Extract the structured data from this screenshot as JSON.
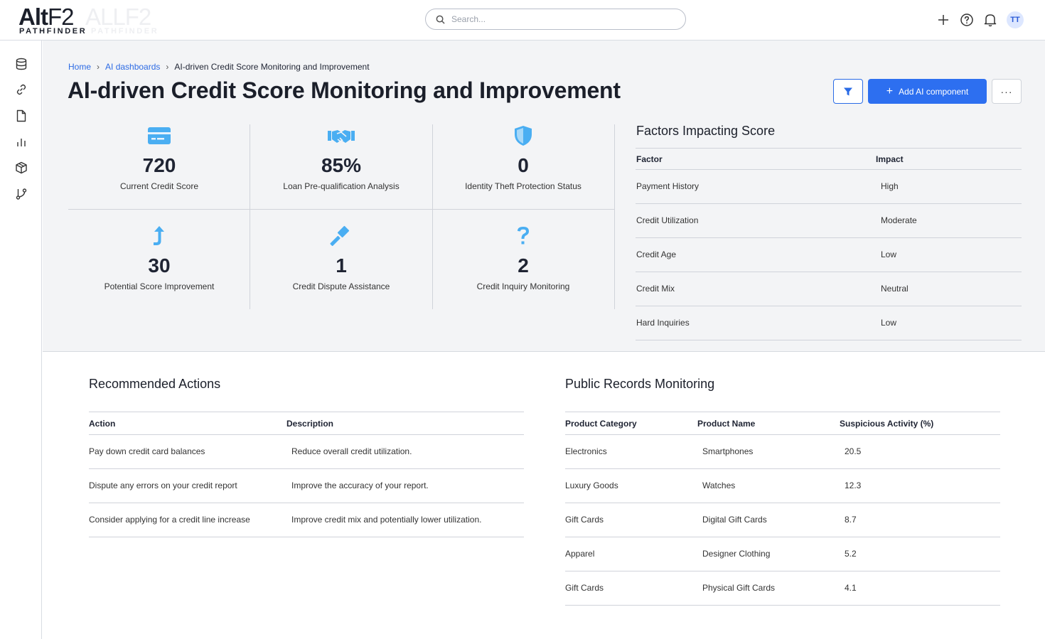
{
  "app": {
    "logo_main": "Alt",
    "logo_thin": "F2",
    "logo_sub": "PATHFINDER"
  },
  "search": {
    "placeholder": "Search..."
  },
  "topbar": {
    "avatar_initials": "TT",
    "icons": [
      "plus-icon",
      "help-icon",
      "bell-icon"
    ]
  },
  "sidebar": {
    "items": [
      "database-icon",
      "link-icon",
      "file-icon",
      "bar-chart-icon",
      "box-icon",
      "git-branch-icon"
    ]
  },
  "breadcrumb": {
    "home": "Home",
    "dashboards": "AI dashboards",
    "current": "AI-driven Credit Score Monitoring and Improvement"
  },
  "page": {
    "title": "AI-driven Credit Score Monitoring and Improvement",
    "add_button": "Add AI component",
    "more_button": "···"
  },
  "kpis": [
    {
      "icon": "credit-card-icon",
      "value": "720",
      "label": "Current Credit Score"
    },
    {
      "icon": "handshake-icon",
      "value": "85%",
      "label": "Loan Pre-qualification Analysis"
    },
    {
      "icon": "shield-icon",
      "value": "0",
      "label": "Identity Theft Protection Status"
    },
    {
      "icon": "arrow-up-icon",
      "value": "30",
      "label": "Potential Score Improvement"
    },
    {
      "icon": "gavel-icon",
      "value": "1",
      "label": "Credit Dispute Assistance"
    },
    {
      "icon": "question-icon",
      "value": "2",
      "label": "Credit Inquiry Monitoring"
    }
  ],
  "accent_colors": {
    "primary": "#2d6ff0",
    "icon": "#4aaef2"
  },
  "factors": {
    "title": "Factors Impacting Score",
    "headers": [
      "Factor",
      "Impact"
    ],
    "rows": [
      [
        "Payment History",
        "High"
      ],
      [
        "Credit Utilization",
        "Moderate"
      ],
      [
        "Credit Age",
        "Low"
      ],
      [
        "Credit Mix",
        "Neutral"
      ],
      [
        "Hard Inquiries",
        "Low"
      ]
    ]
  },
  "recommended": {
    "title": "Recommended Actions",
    "headers": [
      "Action",
      "Description"
    ],
    "rows": [
      [
        "Pay down credit card balances",
        "Reduce overall credit utilization."
      ],
      [
        "Dispute any errors on your credit report",
        "Improve the accuracy of your report."
      ],
      [
        "Consider applying for a credit line increase",
        "Improve credit mix and potentially lower utilization."
      ]
    ]
  },
  "records": {
    "title": "Public Records Monitoring",
    "headers": [
      "Product Category",
      "Product Name",
      "Suspicious Activity (%)"
    ],
    "rows": [
      [
        "Electronics",
        "Smartphones",
        "20.5"
      ],
      [
        "Luxury Goods",
        "Watches",
        "12.3"
      ],
      [
        "Gift Cards",
        "Digital Gift Cards",
        "8.7"
      ],
      [
        "Apparel",
        "Designer Clothing",
        "5.2"
      ],
      [
        "Gift Cards",
        "Physical Gift Cards",
        "4.1"
      ]
    ]
  }
}
